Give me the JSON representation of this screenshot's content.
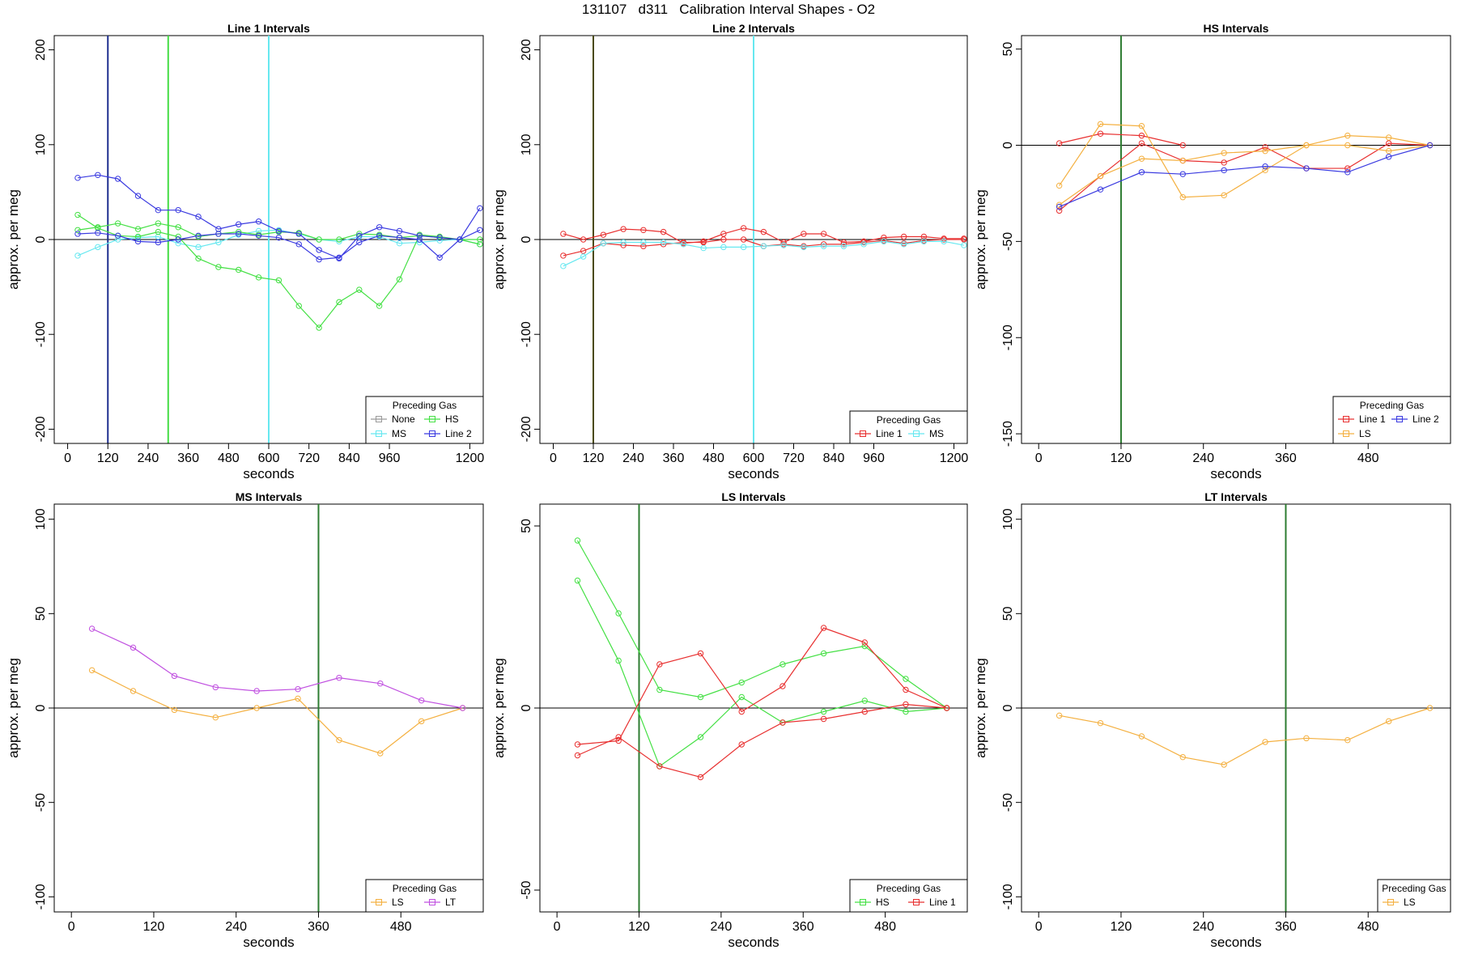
{
  "figure_title": "131107   d311   Calibration Interval Shapes - O2",
  "colors": {
    "None": "#9a9a9a",
    "MS": "#66e8f0",
    "HS": "#44e044",
    "Line 1": "#e83030",
    "Line 2": "#3a3ae0",
    "LS": "#f4b040",
    "LT": "#c050e0"
  },
  "chart_data": [
    {
      "type": "line",
      "title": "Line 1 Intervals",
      "xlabel": "seconds",
      "ylabel": "approx. per meg",
      "xlim": [
        -40,
        1240
      ],
      "ylim": [
        -215,
        215
      ],
      "xticks": [
        0,
        120,
        240,
        360,
        480,
        600,
        720,
        840,
        960,
        1200
      ],
      "yticks": [
        -200,
        -100,
        0,
        100,
        200
      ],
      "vlines": [
        {
          "x": 120,
          "color": "#1f2f8f"
        },
        {
          "x": 300,
          "color": "#44dd44"
        },
        {
          "x": 600,
          "color": "#66e8f0"
        }
      ],
      "legend": {
        "title": "Preceding Gas",
        "position": "bottom-right",
        "columns": 2,
        "entries": [
          {
            "label": "None",
            "series": "None"
          },
          {
            "label": "HS",
            "series": "HS"
          },
          {
            "label": "MS",
            "series": "MS"
          },
          {
            "label": "Line 2",
            "series": "Line 2"
          }
        ]
      },
      "series": [
        {
          "name": "MS",
          "x": [
            30,
            90,
            150,
            210,
            270,
            330,
            390,
            450,
            510,
            570,
            630,
            690,
            750,
            810,
            870,
            930,
            990,
            1050,
            1110,
            1170,
            1230
          ],
          "y": [
            -17,
            -8,
            0,
            2,
            3,
            -4,
            -8,
            -3,
            5,
            9,
            10,
            6,
            0,
            -2,
            3,
            3,
            -4,
            -3,
            -1,
            0,
            -5
          ]
        },
        {
          "name": "HS",
          "x": [
            30,
            90,
            150,
            210,
            270,
            330,
            390,
            450,
            510,
            570,
            630,
            690,
            750,
            810,
            870,
            930,
            990,
            1050,
            1110,
            1170,
            1230
          ],
          "y": [
            26,
            12,
            4,
            3,
            8,
            3,
            -20,
            -29,
            -32,
            -40,
            -43,
            -70,
            -93,
            -66,
            -53,
            -70,
            -42,
            5,
            3,
            0,
            -5
          ]
        },
        {
          "name": "HS",
          "x": [
            30,
            90,
            150,
            210,
            270,
            330,
            390,
            450,
            510,
            570,
            630,
            690,
            750,
            810,
            870,
            930,
            990,
            1050,
            1110,
            1170,
            1230
          ],
          "y": [
            10,
            13,
            17,
            11,
            17,
            13,
            3,
            6,
            8,
            5,
            8,
            7,
            0,
            0,
            6,
            5,
            2,
            4,
            2,
            0,
            0
          ]
        },
        {
          "name": "Line 2",
          "x": [
            30,
            90,
            150,
            210,
            270,
            330,
            390,
            450,
            510,
            570,
            630,
            690,
            750,
            810,
            870,
            930,
            990,
            1050,
            1110,
            1170,
            1230
          ],
          "y": [
            65,
            68,
            64,
            46,
            31,
            31,
            24,
            11,
            16,
            19,
            9,
            6,
            -11,
            -20,
            4,
            13,
            9,
            4,
            2,
            0,
            33
          ]
        },
        {
          "name": "Line 2",
          "x": [
            30,
            90,
            150,
            210,
            270,
            330,
            390,
            450,
            510,
            570,
            630,
            690,
            750,
            810,
            870,
            930,
            990,
            1050,
            1110,
            1170,
            1230
          ],
          "y": [
            6,
            7,
            4,
            -2,
            -3,
            0,
            4,
            6,
            6,
            4,
            2,
            -5,
            -21,
            -19,
            -3,
            4,
            2,
            0,
            -19,
            0,
            10
          ]
        }
      ]
    },
    {
      "type": "line",
      "title": "Line 2 Intervals",
      "xlabel": "seconds",
      "ylabel": "approx. per meg",
      "xlim": [
        -40,
        1240
      ],
      "ylim": [
        -215,
        215
      ],
      "xticks": [
        0,
        120,
        240,
        360,
        480,
        600,
        720,
        840,
        960,
        1200
      ],
      "yticks": [
        -200,
        -100,
        0,
        100,
        200
      ],
      "vlines": [
        {
          "x": 120,
          "color": "#4a4a0a"
        },
        {
          "x": 600,
          "color": "#66e8f0"
        }
      ],
      "legend": {
        "title": "Preceding Gas",
        "position": "bottom-right",
        "columns": 2,
        "entries": [
          {
            "label": "Line 1",
            "series": "Line 1"
          },
          {
            "label": "MS",
            "series": "MS"
          }
        ]
      },
      "series": [
        {
          "name": "Line 1",
          "x": [
            30,
            90,
            150,
            210,
            270,
            330,
            390,
            450,
            510,
            570,
            630,
            690,
            750,
            810,
            870,
            930,
            990,
            1050,
            1110,
            1170,
            1230
          ],
          "y": [
            6,
            0,
            5,
            11,
            10,
            8,
            -4,
            -2,
            6,
            12,
            8,
            -3,
            6,
            6,
            -3,
            -2,
            2,
            3,
            3,
            1,
            1
          ]
        },
        {
          "name": "Line 1",
          "x": [
            30,
            90,
            150,
            210,
            270,
            330,
            390,
            450,
            510,
            570,
            630,
            690,
            750,
            810,
            870,
            930,
            990,
            1050,
            1110,
            1170,
            1230
          ],
          "y": [
            -17,
            -12,
            -4,
            -6,
            -7,
            -5,
            -3,
            -3,
            0,
            0,
            -7,
            -5,
            -7,
            -5,
            -5,
            -3,
            -1,
            -4,
            -1,
            0,
            0
          ]
        },
        {
          "name": "MS",
          "x": [
            30,
            90,
            150,
            210,
            270,
            330,
            390,
            450,
            510,
            570,
            630,
            690,
            750,
            810,
            870,
            930,
            990,
            1050,
            1110,
            1170,
            1230
          ],
          "y": [
            -28,
            -18,
            -4,
            -3,
            -3,
            -3,
            -5,
            -9,
            -8,
            -8,
            -7,
            -6,
            -8,
            -7,
            -7,
            -5,
            -2,
            -5,
            -2,
            -2,
            -6
          ]
        }
      ]
    },
    {
      "type": "line",
      "title": "HS Intervals",
      "xlabel": "seconds",
      "ylabel": "approx. per meg",
      "xlim": [
        -25,
        600
      ],
      "ylim": [
        -155,
        57
      ],
      "xticks": [
        0,
        120,
        240,
        360,
        480
      ],
      "yticks": [
        -150,
        -100,
        -50,
        0,
        50
      ],
      "vlines": [
        {
          "x": 120,
          "color": "#2e7d32"
        }
      ],
      "legend": {
        "title": "Preceding Gas",
        "position": "bottom-right",
        "columns": 2,
        "entries": [
          {
            "label": "Line 1",
            "series": "Line 1"
          },
          {
            "label": "Line 2",
            "series": "Line 2"
          },
          {
            "label": "LS",
            "series": "LS"
          }
        ]
      },
      "series": [
        {
          "name": "Line 1",
          "x": [
            30,
            90,
            150,
            210
          ],
          "y": [
            1,
            6,
            5,
            0
          ]
        },
        {
          "name": "Line 1",
          "x": [
            30,
            90,
            150,
            210,
            270,
            330,
            390,
            450,
            510,
            570
          ],
          "y": [
            -34,
            -16,
            1,
            -8,
            -9,
            -1,
            -12,
            -12,
            1,
            0
          ]
        },
        {
          "name": "LS",
          "x": [
            30,
            90,
            150,
            210,
            270,
            330,
            390,
            450,
            510,
            570
          ],
          "y": [
            -21,
            11,
            10,
            -27,
            -26,
            -13,
            0,
            5,
            4,
            0
          ]
        },
        {
          "name": "LS",
          "x": [
            30,
            90,
            150,
            210,
            270,
            330,
            390,
            450,
            510,
            570
          ],
          "y": [
            -31,
            -16,
            -7,
            -8,
            -4,
            -3,
            0,
            0,
            -3,
            0
          ]
        },
        {
          "name": "Line 2",
          "x": [
            30,
            90,
            150,
            210,
            270,
            330,
            390,
            450,
            510,
            570
          ],
          "y": [
            -32,
            -23,
            -14,
            -15,
            -13,
            -11,
            -12,
            -14,
            -6,
            0
          ]
        }
      ]
    },
    {
      "type": "line",
      "title": "MS Intervals",
      "xlabel": "seconds",
      "ylabel": "approx. per meg",
      "xlim": [
        -25,
        600
      ],
      "ylim": [
        -108,
        108
      ],
      "xticks": [
        0,
        120,
        240,
        360,
        480
      ],
      "yticks": [
        -100,
        -50,
        0,
        50,
        100
      ],
      "vlines": [
        {
          "x": 360,
          "color": "#2e7d32"
        }
      ],
      "legend": {
        "title": "Preceding Gas",
        "position": "bottom-right",
        "columns": 2,
        "entries": [
          {
            "label": "LS",
            "series": "LS"
          },
          {
            "label": "LT",
            "series": "LT"
          }
        ]
      },
      "series": [
        {
          "name": "LS",
          "x": [
            30,
            90,
            150,
            210,
            270,
            330,
            390,
            450,
            510,
            570
          ],
          "y": [
            20,
            9,
            -1,
            -5,
            0,
            5,
            -17,
            -24,
            -7,
            0
          ]
        },
        {
          "name": "LT",
          "x": [
            30,
            90,
            150,
            210,
            270,
            330,
            390,
            450,
            510,
            570
          ],
          "y": [
            42,
            32,
            17,
            11,
            9,
            10,
            16,
            13,
            4,
            0
          ]
        }
      ]
    },
    {
      "type": "line",
      "title": "LS Intervals",
      "xlabel": "seconds",
      "ylabel": "approx. per meg",
      "xlim": [
        -25,
        600
      ],
      "ylim": [
        -56,
        56
      ],
      "xticks": [
        0,
        120,
        240,
        360,
        480
      ],
      "yticks": [
        -50,
        0,
        50
      ],
      "vlines": [
        {
          "x": 120,
          "color": "#2e7d32"
        }
      ],
      "legend": {
        "title": "Preceding Gas",
        "position": "bottom-right",
        "columns": 2,
        "entries": [
          {
            "label": "HS",
            "series": "HS"
          },
          {
            "label": "Line 1",
            "series": "Line 1"
          }
        ]
      },
      "series": [
        {
          "name": "HS",
          "x": [
            30,
            90,
            150,
            210,
            270,
            330,
            390,
            450,
            510,
            570
          ],
          "y": [
            46,
            26,
            5,
            3,
            7,
            12,
            15,
            17,
            8,
            0
          ]
        },
        {
          "name": "HS",
          "x": [
            30,
            90,
            150,
            210,
            270,
            330,
            390,
            450,
            510,
            570
          ],
          "y": [
            35,
            13,
            -16,
            -8,
            3,
            -4,
            -1,
            2,
            -1,
            0
          ]
        },
        {
          "name": "Line 1",
          "x": [
            30,
            90,
            150,
            210,
            270,
            330,
            390,
            450,
            510,
            570
          ],
          "y": [
            -10,
            -9,
            12,
            15,
            -1,
            6,
            22,
            18,
            5,
            0
          ]
        },
        {
          "name": "Line 1",
          "x": [
            30,
            90,
            150,
            210,
            270,
            330,
            390,
            450,
            510,
            570
          ],
          "y": [
            -13,
            -8,
            -16,
            -19,
            -10,
            -4,
            -3,
            -1,
            1,
            0
          ]
        }
      ]
    },
    {
      "type": "line",
      "title": "LT Intervals",
      "xlabel": "seconds",
      "ylabel": "approx. per meg",
      "xlim": [
        -25,
        600
      ],
      "ylim": [
        -108,
        108
      ],
      "xticks": [
        0,
        120,
        240,
        360,
        480
      ],
      "yticks": [
        -100,
        -50,
        0,
        50,
        100
      ],
      "vlines": [
        {
          "x": 360,
          "color": "#2e7d32"
        }
      ],
      "legend": {
        "title": "Preceding Gas",
        "position": "bottom-right",
        "columns": 1,
        "entries": [
          {
            "label": "LS",
            "series": "LS"
          }
        ]
      },
      "series": [
        {
          "name": "LS",
          "x": [
            30,
            90,
            150,
            210,
            270,
            330,
            390,
            450,
            510,
            570
          ],
          "y": [
            -4,
            -8,
            -15,
            -26,
            -30,
            -18,
            -16,
            -17,
            -7,
            0
          ]
        }
      ]
    }
  ]
}
